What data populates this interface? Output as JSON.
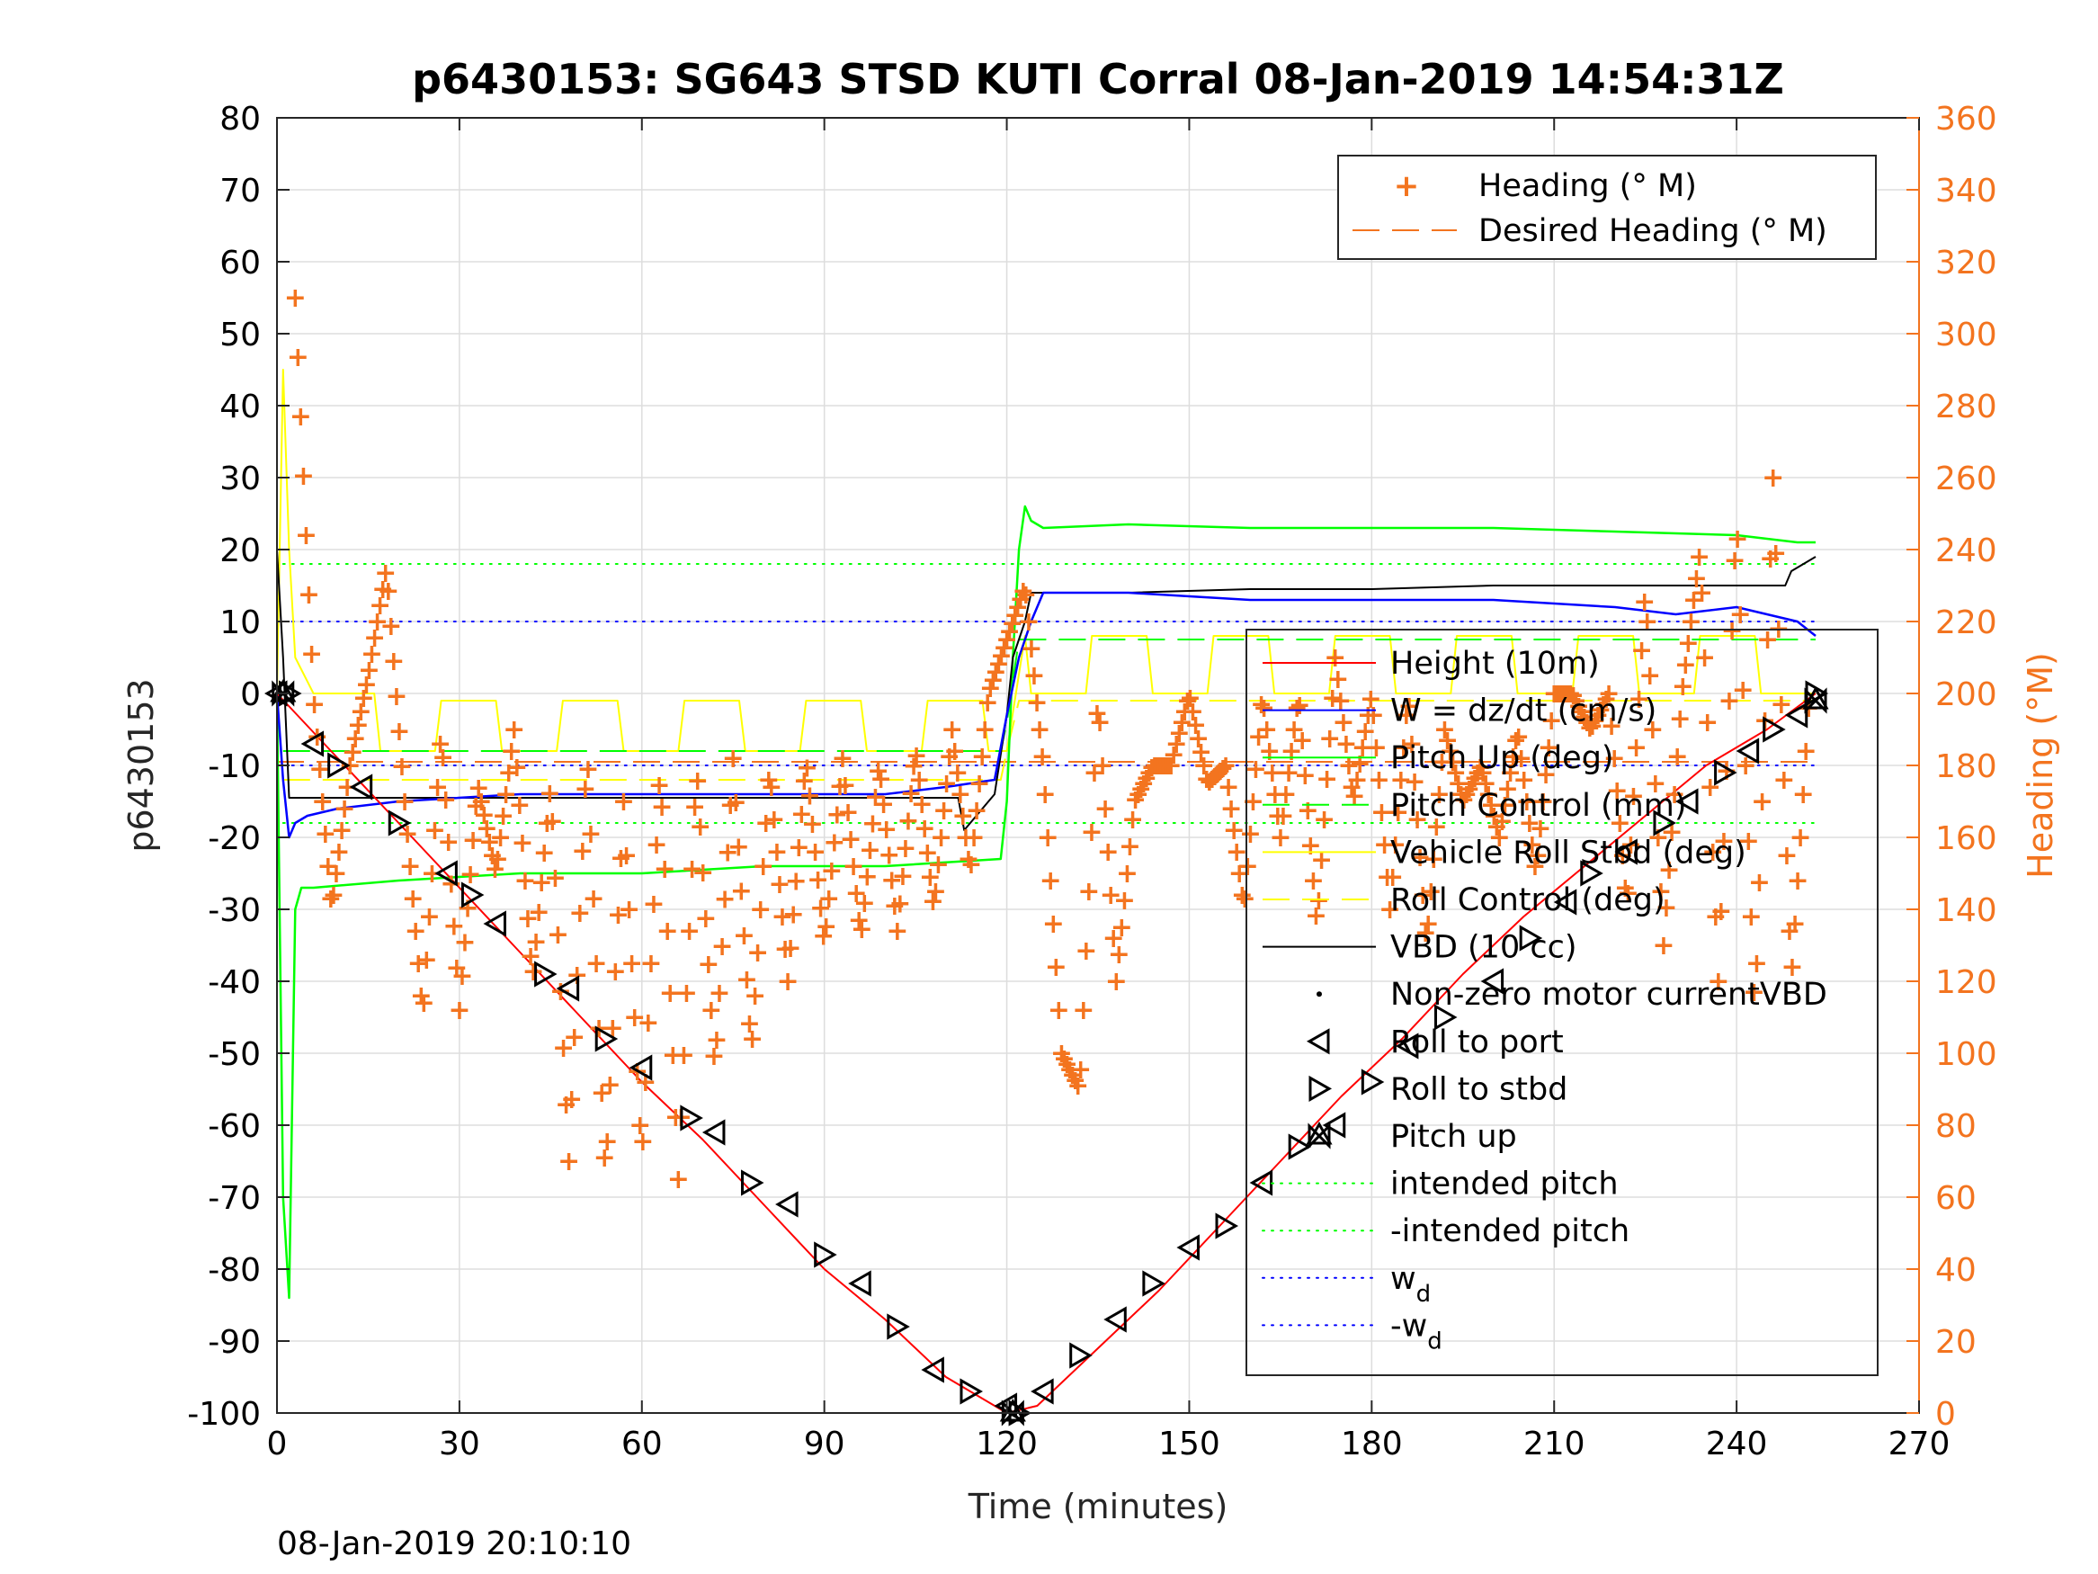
{
  "chart_data": {
    "type": "line",
    "title": "p6430153: SG643 STSD KUTI Corral 08-Jan-2019 14:54:31Z",
    "xlabel": "Time (minutes)",
    "ylabel_left": "p6430153",
    "ylabel_right": "Heading (°M)",
    "footer": "08-Jan-2019 20:10:10",
    "xlim": [
      0,
      270
    ],
    "ylim_left": [
      -100,
      80
    ],
    "ylim_right": [
      0,
      360
    ],
    "x_ticks": [
      0,
      30,
      60,
      90,
      120,
      150,
      180,
      210,
      240,
      270
    ],
    "y_ticks_left": [
      80,
      70,
      60,
      50,
      40,
      30,
      20,
      10,
      0,
      -10,
      -20,
      -30,
      -40,
      -50,
      -60,
      -70,
      -80,
      -90,
      -100
    ],
    "y_ticks_right": [
      360,
      340,
      320,
      300,
      280,
      260,
      240,
      220,
      200,
      180,
      160,
      140,
      120,
      100,
      80,
      60,
      40,
      20,
      0
    ],
    "grid": true,
    "colors": {
      "height": "#ff0000",
      "w": "#0000ff",
      "pitch": "#00ff00",
      "roll": "#ffff00",
      "vbd": "#000000",
      "heading": "#F3741F"
    },
    "legend_heading": {
      "placement": "top-right",
      "entries": [
        "Heading (° M)",
        "Desired Heading (° M)"
      ]
    },
    "legend_main": {
      "placement": "right",
      "entries": [
        {
          "label": "Height (10m)",
          "style": "solid",
          "color": "#ff0000"
        },
        {
          "label": "W = dz/dt (cm/s)",
          "style": "solid",
          "color": "#0000ff"
        },
        {
          "label": "Pitch Up (deg)",
          "style": "solid",
          "color": "#00ff00"
        },
        {
          "label": "Pitch Control (mm)",
          "style": "dashed",
          "color": "#00ff00"
        },
        {
          "label": "Vehicle Roll Stbd (deg)",
          "style": "solid",
          "color": "#ffff00"
        },
        {
          "label": "Roll Control (deg)",
          "style": "dashed",
          "color": "#ffff00"
        },
        {
          "label": "VBD (10 cc)",
          "style": "solid",
          "color": "#000000"
        },
        {
          "label": "Non-zero motor currentVBD",
          "style": "dot",
          "color": "#000000"
        },
        {
          "label": "Roll to port",
          "style": "triangle-left",
          "color": "#000000"
        },
        {
          "label": "Roll to stbd",
          "style": "triangle-right",
          "color": "#000000"
        },
        {
          "label": "Pitch up",
          "style": "bowtie",
          "color": "#000000"
        },
        {
          "label": "intended pitch",
          "style": "dotted",
          "color": "#00ff00"
        },
        {
          "label": "-intended pitch",
          "style": "dotted",
          "color": "#00ff00"
        },
        {
          "label": "w",
          "sub": "d",
          "style": "dotted",
          "color": "#0000ff"
        },
        {
          "label": "-w",
          "sub": "d",
          "style": "dotted",
          "color": "#0000ff"
        }
      ]
    },
    "series": [
      {
        "name": "Height (10m)",
        "axis": "left",
        "x": [
          0,
          10,
          20,
          30,
          40,
          50,
          60,
          70,
          80,
          90,
          100,
          110,
          120,
          125,
          135,
          145,
          155,
          165,
          175,
          185,
          195,
          205,
          215,
          225,
          235,
          245,
          253
        ],
        "y": [
          0,
          -9,
          -18,
          -27,
          -36,
          -45,
          -54,
          -62,
          -71,
          -80,
          -87,
          -95,
          -100,
          -99,
          -91,
          -83,
          -74,
          -65,
          -56,
          -48,
          -39,
          -31,
          -24,
          -17,
          -10,
          -5,
          0
        ]
      },
      {
        "name": "W = dz/dt (cm/s)",
        "axis": "left",
        "x": [
          0,
          1,
          2,
          3,
          5,
          10,
          20,
          40,
          60,
          80,
          100,
          110,
          118,
          120,
          122,
          124,
          126,
          130,
          140,
          160,
          180,
          200,
          220,
          230,
          240,
          245,
          250,
          253
        ],
        "y": [
          0,
          -12,
          -20,
          -18,
          -17,
          -16,
          -15,
          -14,
          -14,
          -14,
          -14,
          -13,
          -12,
          -3,
          5,
          10,
          14,
          14,
          14,
          13,
          13,
          13,
          12,
          11,
          12,
          11,
          10,
          8
        ]
      },
      {
        "name": "Pitch Up (deg)",
        "axis": "left",
        "x": [
          0,
          1,
          2,
          3,
          4,
          6,
          20,
          40,
          60,
          80,
          100,
          119,
          120,
          121,
          122,
          123,
          124,
          126,
          140,
          160,
          180,
          200,
          220,
          240,
          250,
          253
        ],
        "y": [
          0,
          -70,
          -84,
          -30,
          -27,
          -27,
          -26,
          -25,
          -25,
          -24,
          -24,
          -23,
          -15,
          5,
          20,
          26,
          24,
          23,
          23.5,
          23,
          23,
          23,
          22.5,
          22,
          21,
          21
        ]
      },
      {
        "name": "Pitch Control (mm)",
        "axis": "left",
        "x": [
          1,
          119,
          120,
          122,
          253
        ],
        "y": [
          -8,
          -8,
          -4,
          7.5,
          7.5
        ]
      },
      {
        "name": "Vehicle Roll Stbd (deg)",
        "axis": "left",
        "x": [
          0,
          1,
          2,
          3,
          6,
          10,
          16,
          17,
          26,
          27,
          36,
          37,
          46,
          47,
          56,
          57,
          66,
          67,
          76,
          77,
          86,
          87,
          96,
          97,
          106,
          107,
          116,
          117,
          120,
          123,
          124,
          133,
          134,
          143,
          144,
          153,
          154,
          163,
          164,
          173,
          174,
          183,
          184,
          193,
          194,
          203,
          204,
          213,
          214,
          223,
          224,
          233,
          234,
          243,
          244,
          253
        ],
        "y": [
          0,
          45,
          20,
          5,
          0,
          0,
          0,
          -8,
          -8,
          -1,
          -1,
          -8,
          -8,
          -1,
          -1,
          -8,
          -8,
          -1,
          -1,
          -8,
          -8,
          -1,
          -1,
          -8,
          -8,
          -1,
          -1,
          -8,
          -8,
          8,
          0,
          0,
          8,
          8,
          0,
          0,
          8,
          8,
          0,
          0,
          8,
          8,
          0,
          0,
          8,
          8,
          0,
          0,
          8,
          8,
          0,
          0,
          8,
          8,
          0,
          0
        ]
      },
      {
        "name": "Roll Control (deg)",
        "axis": "left",
        "x": [
          1,
          119,
          120,
          122,
          253
        ],
        "y": [
          -12,
          -12,
          -8,
          -1,
          -1
        ]
      },
      {
        "name": "VBD (10 cc)",
        "axis": "left",
        "x": [
          0,
          1,
          2,
          80,
          112,
          113,
          118,
          120,
          121,
          123,
          124,
          130,
          140,
          160,
          180,
          200,
          220,
          230,
          240,
          248,
          249,
          253
        ],
        "y": [
          20,
          5,
          -14.5,
          -14.5,
          -14.5,
          -19,
          -14,
          -3,
          5,
          10,
          14,
          14,
          14,
          14.5,
          14.5,
          15,
          15,
          15,
          15,
          15,
          17,
          19
        ]
      },
      {
        "name": "Desired Heading (° M)",
        "axis": "right",
        "style": "dashed",
        "x": [
          0,
          253
        ],
        "y": [
          181,
          181
        ]
      },
      {
        "name": "Heading (° M)",
        "axis": "right",
        "style": "plus",
        "oscillation_x": [
          3,
          6,
          9,
          12,
          15,
          18,
          21,
          24,
          27,
          30,
          33,
          36,
          39,
          42,
          45,
          48,
          51,
          54,
          57,
          60,
          63,
          66,
          69,
          72,
          75,
          78,
          81,
          84,
          87,
          90,
          93,
          96,
          99,
          102,
          105,
          108,
          111,
          114,
          117,
          120,
          123,
          126,
          129,
          132,
          135,
          138,
          141,
          144,
          147,
          150,
          153,
          156,
          159,
          162,
          165,
          168,
          171,
          174,
          177,
          180,
          183,
          186,
          189,
          192,
          195,
          198,
          201,
          204,
          207,
          210,
          213,
          216,
          219,
          222,
          225,
          228,
          231,
          234,
          237,
          240,
          243,
          246,
          249,
          252
        ],
        "oscillation_y": [
          310,
          200,
          140,
          180,
          205,
          235,
          170,
          110,
          190,
          112,
          175,
          150,
          190,
          120,
          175,
          70,
          185,
          65,
          170,
          70,
          180,
          65,
          180,
          95,
          182,
          100,
          180,
          120,
          182,
          130,
          182,
          132,
          181,
          134,
          185,
          140,
          190,
          150,
          200,
          215,
          230,
          180,
          100,
          90,
          200,
          120,
          170,
          180,
          180,
          200,
          175,
          180,
          140,
          200,
          160,
          200,
          135,
          210,
          170,
          200,
          140,
          200,
          130,
          190,
          170,
          180,
          160,
          190,
          150,
          200,
          200,
          190,
          200,
          140,
          230,
          130,
          200,
          240,
          120,
          250,
          110,
          260,
          120,
          200
        ]
      }
    ],
    "markers": {
      "roll_to_port": [
        [
          0,
          0
        ],
        [
          6,
          -7
        ],
        [
          14,
          -13
        ],
        [
          28,
          -25
        ],
        [
          36,
          -32
        ],
        [
          48,
          -41
        ],
        [
          60,
          -52
        ],
        [
          72,
          -61
        ],
        [
          84,
          -71
        ],
        [
          96,
          -82
        ],
        [
          108,
          -94
        ],
        [
          120,
          -99
        ],
        [
          126,
          -97
        ],
        [
          138,
          -87
        ],
        [
          150,
          -77
        ],
        [
          162,
          -68
        ],
        [
          174,
          -60
        ],
        [
          186,
          -49
        ],
        [
          200,
          -40
        ],
        [
          212,
          -29
        ],
        [
          222,
          -22
        ],
        [
          232,
          -15
        ],
        [
          242,
          -8
        ],
        [
          250,
          -3
        ]
      ],
      "roll_to_stbd": [
        [
          2,
          0
        ],
        [
          10,
          -10
        ],
        [
          20,
          -18
        ],
        [
          32,
          -28
        ],
        [
          44,
          -39
        ],
        [
          54,
          -48
        ],
        [
          68,
          -59
        ],
        [
          78,
          -68
        ],
        [
          90,
          -78
        ],
        [
          102,
          -88
        ],
        [
          114,
          -97
        ],
        [
          122,
          -100
        ],
        [
          132,
          -92
        ],
        [
          144,
          -82
        ],
        [
          156,
          -74
        ],
        [
          168,
          -63
        ],
        [
          180,
          -54
        ],
        [
          192,
          -45
        ],
        [
          206,
          -34
        ],
        [
          216,
          -25
        ],
        [
          228,
          -18
        ],
        [
          238,
          -11
        ],
        [
          246,
          -5
        ],
        [
          253,
          0
        ]
      ],
      "pitch_up": [
        [
          1,
          0
        ],
        [
          121,
          -100
        ],
        [
          253,
          -1
        ]
      ]
    },
    "reference_lines": {
      "intended_pitch": 18,
      "neg_intended_pitch": -18,
      "w_d": 10,
      "neg_w_d": -10
    }
  }
}
